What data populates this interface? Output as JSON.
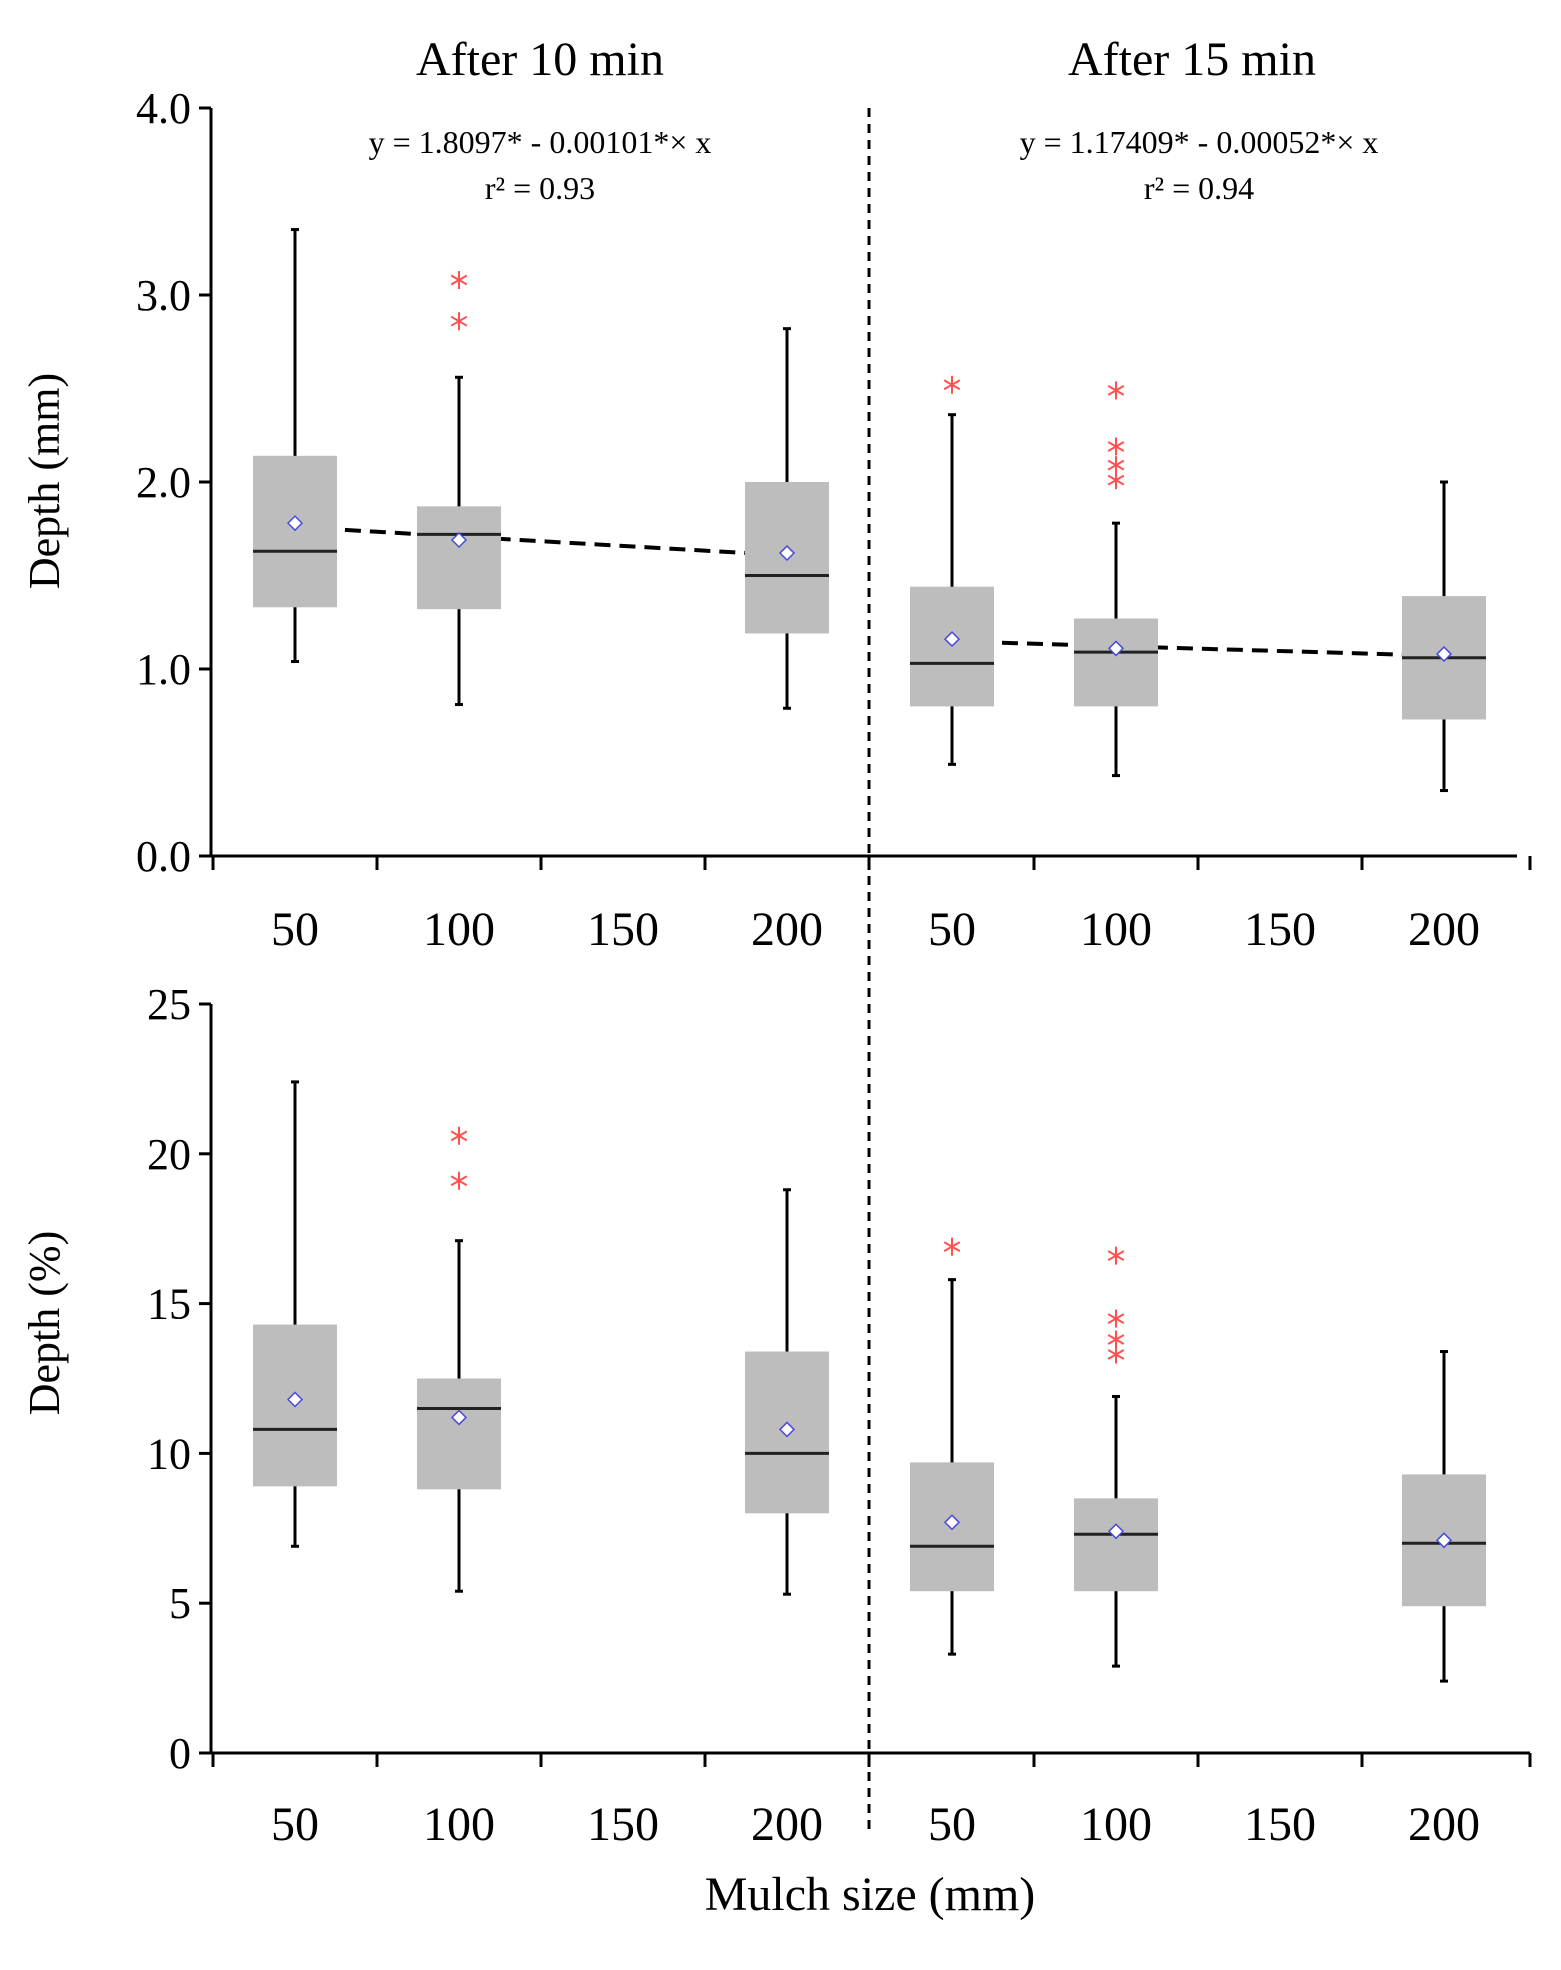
{
  "chart_data": {
    "type": "box",
    "section_titles": [
      "After 10 min",
      "After 15 min"
    ],
    "xlabel": "Mulch size (mm)",
    "x_ticks": [
      50,
      100,
      150,
      200
    ],
    "colors": {
      "box": "#bdbdbd",
      "median": "#222222",
      "outlier": "#ff5050",
      "mean_marker_stroke": "#4a4adb",
      "axis": "#000000"
    },
    "panels": [
      {
        "name": "depth-mm",
        "ylabel": "Depth (mm)",
        "ylim": [
          0,
          4
        ],
        "ytick_values": [
          0,
          1,
          2,
          3,
          4
        ],
        "ytick_labels": [
          "0.0",
          "1.0",
          "2.0",
          "3.0",
          "4.0"
        ],
        "equations": [
          {
            "equation": "y = 1.8097* - 0.00101*× x",
            "r2": "r² = 0.93"
          },
          {
            "equation": "y = 1.17409* - 0.00052*× x",
            "r2": "r² = 0.94"
          }
        ],
        "trend_lines": [
          {
            "section": 0,
            "intercept": 1.8097,
            "slope": -0.00101
          },
          {
            "section": 1,
            "intercept": 1.17409,
            "slope": -0.00052
          }
        ],
        "boxes": [
          {
            "section": 0,
            "mulch": 50,
            "whisker_low": 1.04,
            "q1": 1.33,
            "median": 1.63,
            "q3": 2.14,
            "whisker_high": 3.35,
            "mean": 1.78,
            "outliers": []
          },
          {
            "section": 0,
            "mulch": 100,
            "whisker_low": 0.81,
            "q1": 1.32,
            "median": 1.72,
            "q3": 1.87,
            "whisker_high": 2.56,
            "mean": 1.69,
            "outliers": [
              2.86,
              3.08
            ]
          },
          {
            "section": 0,
            "mulch": 200,
            "whisker_low": 0.79,
            "q1": 1.19,
            "median": 1.5,
            "q3": 2.0,
            "whisker_high": 2.82,
            "mean": 1.62,
            "outliers": []
          },
          {
            "section": 1,
            "mulch": 50,
            "whisker_low": 0.49,
            "q1": 0.8,
            "median": 1.03,
            "q3": 1.44,
            "whisker_high": 2.36,
            "mean": 1.16,
            "outliers": [
              2.52
            ]
          },
          {
            "section": 1,
            "mulch": 100,
            "whisker_low": 0.43,
            "q1": 0.8,
            "median": 1.09,
            "q3": 1.27,
            "whisker_high": 1.78,
            "mean": 1.11,
            "outliers": [
              2.01,
              2.09,
              2.19,
              2.49
            ]
          },
          {
            "section": 1,
            "mulch": 200,
            "whisker_low": 0.35,
            "q1": 0.73,
            "median": 1.06,
            "q3": 1.39,
            "whisker_high": 2.0,
            "mean": 1.08,
            "outliers": []
          }
        ]
      },
      {
        "name": "depth-percent",
        "ylabel": "Depth (%)",
        "ylim": [
          0,
          25
        ],
        "ytick_values": [
          0,
          5,
          10,
          15,
          20,
          25
        ],
        "ytick_labels": [
          "0",
          "5",
          "10",
          "15",
          "20",
          "25"
        ],
        "equations": [],
        "trend_lines": [],
        "boxes": [
          {
            "section": 0,
            "mulch": 50,
            "whisker_low": 6.9,
            "q1": 8.9,
            "median": 10.8,
            "q3": 14.3,
            "whisker_high": 22.4,
            "mean": 11.8,
            "outliers": []
          },
          {
            "section": 0,
            "mulch": 100,
            "whisker_low": 5.4,
            "q1": 8.8,
            "median": 11.5,
            "q3": 12.5,
            "whisker_high": 17.1,
            "mean": 11.2,
            "outliers": [
              19.1,
              20.6
            ]
          },
          {
            "section": 0,
            "mulch": 200,
            "whisker_low": 5.3,
            "q1": 8.0,
            "median": 10.0,
            "q3": 13.4,
            "whisker_high": 18.8,
            "mean": 10.8,
            "outliers": []
          },
          {
            "section": 1,
            "mulch": 50,
            "whisker_low": 3.3,
            "q1": 5.4,
            "median": 6.9,
            "q3": 9.7,
            "whisker_high": 15.8,
            "mean": 7.7,
            "outliers": [
              16.9
            ]
          },
          {
            "section": 1,
            "mulch": 100,
            "whisker_low": 2.9,
            "q1": 5.4,
            "median": 7.3,
            "q3": 8.5,
            "whisker_high": 11.9,
            "mean": 7.4,
            "outliers": [
              13.3,
              13.8,
              14.5,
              16.6
            ]
          },
          {
            "section": 1,
            "mulch": 200,
            "whisker_low": 2.4,
            "q1": 4.9,
            "median": 7.0,
            "q3": 9.3,
            "whisker_high": 13.4,
            "mean": 7.1,
            "outliers": []
          }
        ]
      }
    ]
  }
}
